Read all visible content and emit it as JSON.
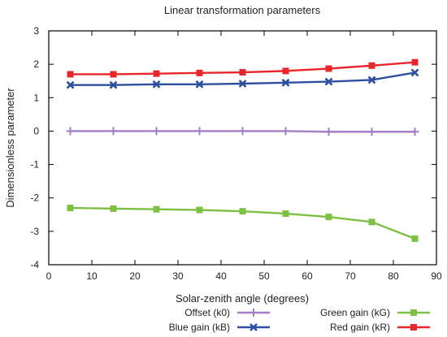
{
  "chart_data": {
    "type": "line",
    "title": "Linear transformation parameters",
    "xlabel": "Solar-zenith angle (degrees)",
    "ylabel": "Dimensionless parameter",
    "xlim": [
      0,
      90
    ],
    "ylim": [
      -4,
      3
    ],
    "xticks": [
      0,
      10,
      20,
      30,
      40,
      50,
      60,
      70,
      80,
      90
    ],
    "yticks": [
      -4,
      -3,
      -2,
      -1,
      0,
      1,
      2,
      3
    ],
    "grid": false,
    "legend_position": "bottom",
    "x": [
      5,
      15,
      25,
      35,
      45,
      55,
      65,
      75,
      85
    ],
    "series": [
      {
        "name": "Offset (k0)",
        "color": "#a37fc6",
        "marker": "plus",
        "values": [
          0.0,
          0.0,
          0.0,
          0.0,
          0.0,
          0.0,
          -0.02,
          -0.02,
          -0.02
        ]
      },
      {
        "name": "Green gain (kG)",
        "color": "#7cc142",
        "marker": "square",
        "values": [
          -2.3,
          -2.32,
          -2.34,
          -2.36,
          -2.4,
          -2.47,
          -2.57,
          -2.72,
          -3.22
        ]
      },
      {
        "name": "Blue gain (kB)",
        "color": "#2e4fa0",
        "marker": "x",
        "values": [
          1.38,
          1.38,
          1.4,
          1.4,
          1.42,
          1.45,
          1.48,
          1.53,
          1.75
        ]
      },
      {
        "name": "Red gain (kR)",
        "color": "#e8262b",
        "marker": "square",
        "values": [
          1.7,
          1.7,
          1.72,
          1.74,
          1.76,
          1.8,
          1.87,
          1.96,
          2.06
        ]
      }
    ]
  }
}
